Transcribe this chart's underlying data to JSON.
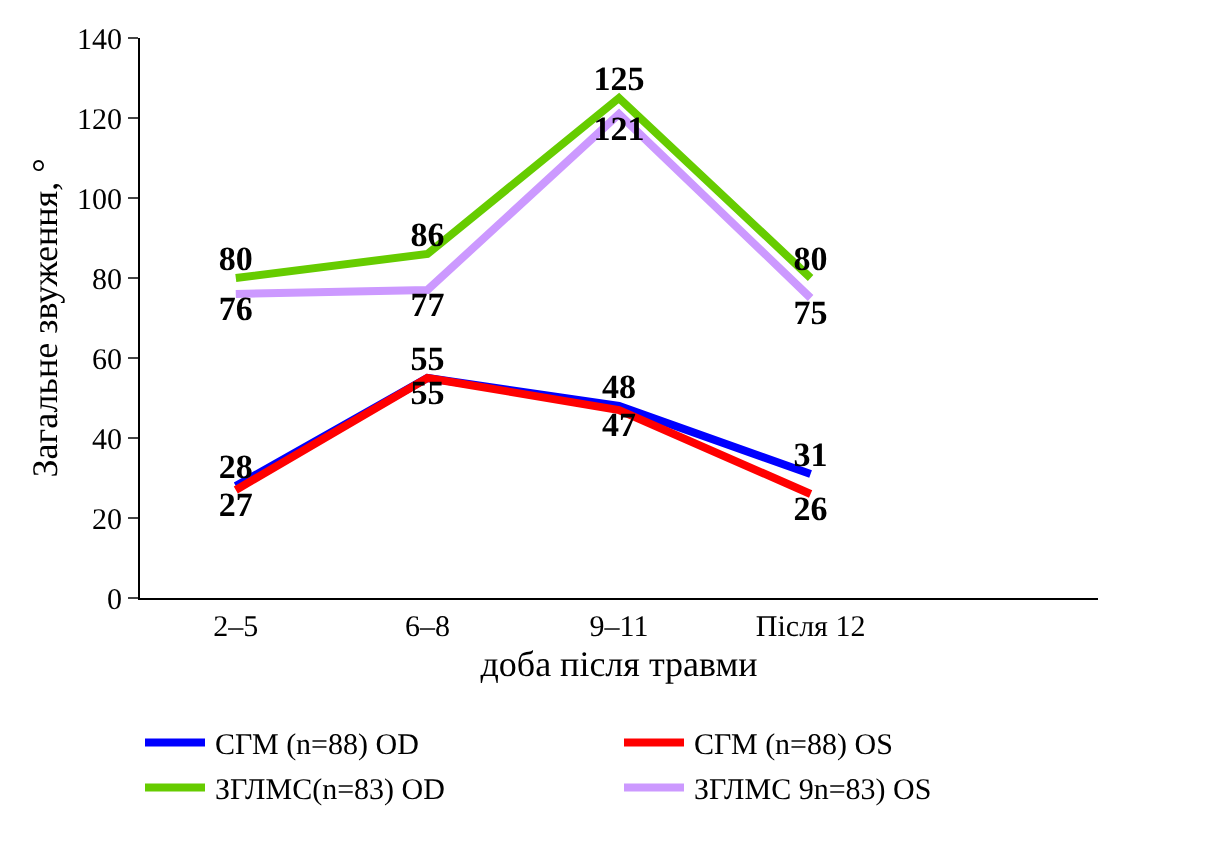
{
  "chart_data": {
    "type": "line",
    "categories": [
      "2–5",
      "6–8",
      "9–11",
      "Після 12",
      null
    ],
    "xlabel": "доба після травми",
    "ylabel": "Загальне звуження, °",
    "ylim": [
      0,
      140
    ],
    "yticks": [
      0,
      20,
      40,
      60,
      80,
      100,
      120,
      140
    ],
    "legend": "bottom",
    "marker": "none",
    "line_style": "solid",
    "data_labels": true,
    "series": [
      {
        "name": "СГМ (n=88) OD",
        "color": "#0000ff",
        "values": [
          28,
          55,
          48,
          31,
          null
        ]
      },
      {
        "name": "СГМ (n=88) OS",
        "color": "#ff0000",
        "values": [
          27,
          55,
          47,
          26,
          null
        ]
      },
      {
        "name": "ЗГЛМС(n=83) OD",
        "color": "#66cc00",
        "values": [
          80,
          86,
          125,
          80,
          null
        ]
      },
      {
        "name": "ЗГЛМС 9n=83) OS",
        "color": "#cc99ff",
        "values": [
          76,
          77,
          121,
          75,
          null
        ]
      }
    ]
  }
}
